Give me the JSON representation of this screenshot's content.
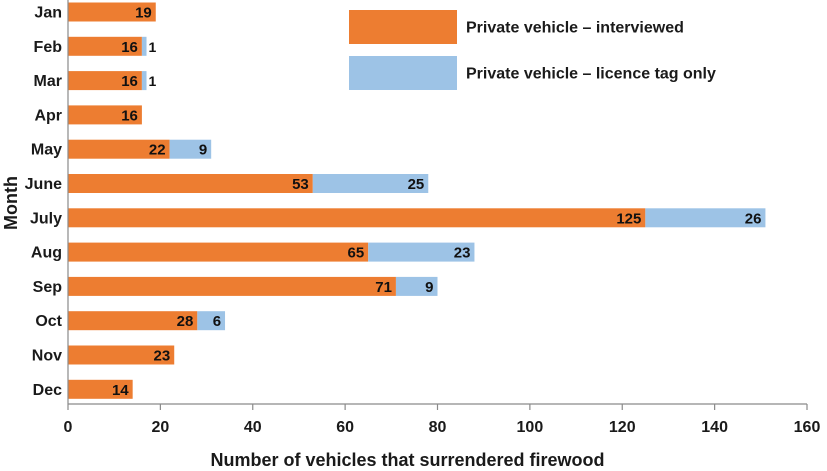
{
  "chart_data": {
    "type": "bar",
    "orientation": "horizontal",
    "stacked": true,
    "categories": [
      "Jan",
      "Feb",
      "Mar",
      "Apr",
      "May",
      "June",
      "July",
      "Aug",
      "Sep",
      "Oct",
      "Nov",
      "Dec"
    ],
    "series": [
      {
        "name": "Private vehicle – interviewed",
        "color": "#ED7D31",
        "values": [
          19,
          16,
          16,
          16,
          22,
          53,
          125,
          65,
          71,
          28,
          23,
          14
        ]
      },
      {
        "name": "Private vehicle – licence tag only",
        "color": "#9DC3E6",
        "values": [
          0,
          1,
          1,
          0,
          9,
          25,
          26,
          23,
          9,
          6,
          0,
          0
        ]
      }
    ],
    "xlabel": "Number of vehicles that surrendered firewood",
    "ylabel": "Month",
    "xlim": [
      0,
      160
    ],
    "xticks": [
      0,
      20,
      40,
      60,
      80,
      100,
      120,
      140,
      160
    ],
    "grid": false,
    "legend_position": "top-right"
  }
}
